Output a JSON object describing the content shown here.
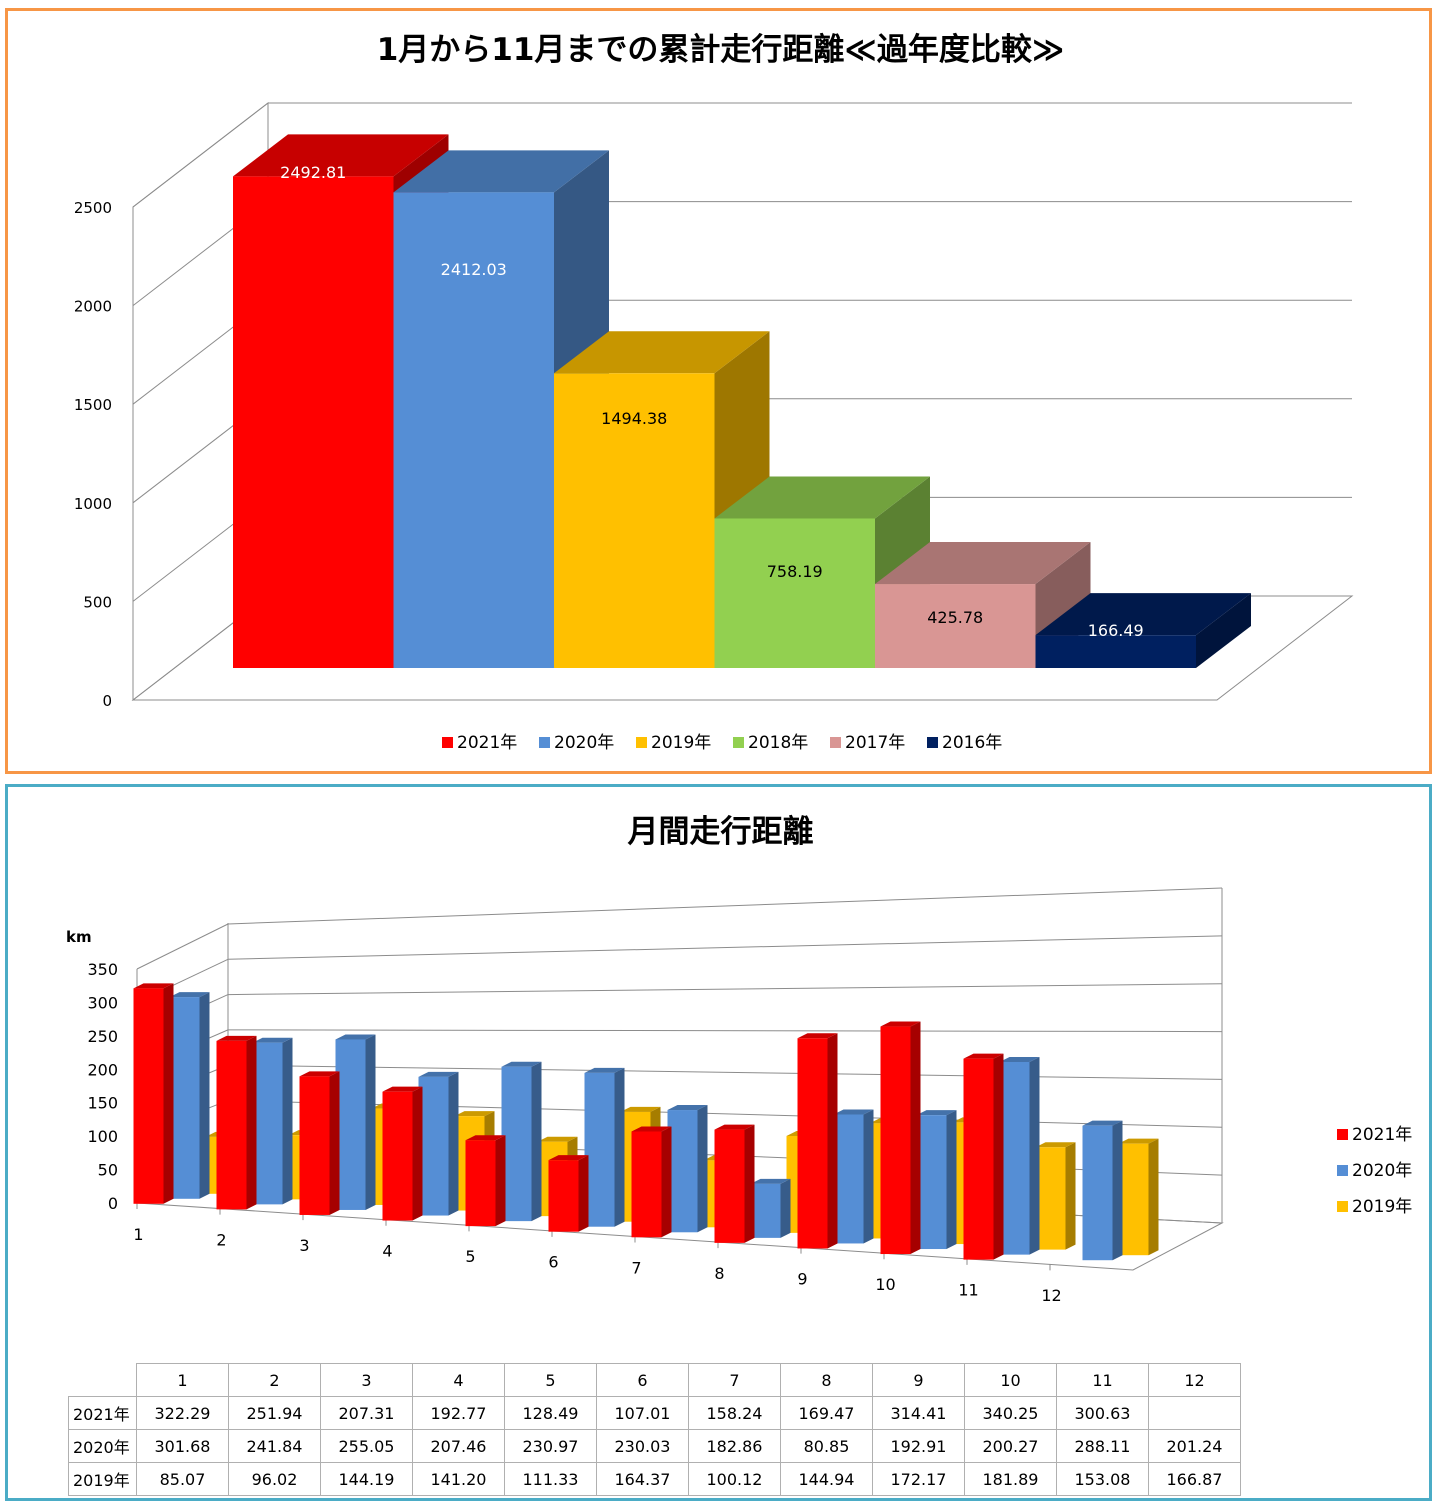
{
  "chart_data": [
    {
      "type": "bar",
      "title": "1月から11月までの累計走行距離≪過年度比較≫",
      "categories": [
        "2021年",
        "2020年",
        "2019年",
        "2018年",
        "2017年",
        "2016年"
      ],
      "values": [
        2492.81,
        2412.03,
        1494.38,
        758.19,
        425.78,
        166.49
      ],
      "colors": [
        "#ff0000",
        "#558ed5",
        "#ffc000",
        "#92d050",
        "#d99694",
        "#002060"
      ],
      "ylim": [
        0,
        2500
      ],
      "yticks": [
        "0",
        "500",
        "1000",
        "1500",
        "2000",
        "2500"
      ],
      "legend": "bottom",
      "grid": true,
      "style": "3d"
    },
    {
      "type": "bar",
      "title": "月間走行距離",
      "ylabel": "km",
      "categories": [
        "1",
        "2",
        "3",
        "4",
        "5",
        "6",
        "7",
        "8",
        "9",
        "10",
        "11",
        "12"
      ],
      "series": [
        {
          "name": "2021年",
          "color": "#ff0000",
          "values": [
            322.29,
            251.94,
            207.31,
            192.77,
            128.49,
            107.01,
            158.24,
            169.47,
            314.41,
            340.25,
            300.63,
            null
          ]
        },
        {
          "name": "2020年",
          "color": "#558ed5",
          "values": [
            301.68,
            241.84,
            255.05,
            207.46,
            230.97,
            230.03,
            182.86,
            80.85,
            192.91,
            200.27,
            288.11,
            201.24
          ]
        },
        {
          "name": "2019年",
          "color": "#ffc000",
          "values": [
            85.07,
            96.02,
            144.19,
            141.2,
            111.33,
            164.37,
            100.12,
            144.94,
            172.17,
            181.89,
            153.08,
            166.87
          ]
        }
      ],
      "ylim": [
        0,
        350
      ],
      "yticks": [
        "0",
        "50",
        "100",
        "150",
        "200",
        "250",
        "300",
        "350"
      ],
      "legend": "right",
      "grid": true,
      "style": "3d"
    }
  ],
  "table": {
    "columns": [
      "1",
      "2",
      "3",
      "4",
      "5",
      "6",
      "7",
      "8",
      "9",
      "10",
      "11",
      "12"
    ],
    "rows": [
      {
        "label": "2021年",
        "cells": [
          "322.29",
          "251.94",
          "207.31",
          "192.77",
          "128.49",
          "107.01",
          "158.24",
          "169.47",
          "314.41",
          "340.25",
          "300.63",
          ""
        ]
      },
      {
        "label": "2020年",
        "cells": [
          "301.68",
          "241.84",
          "255.05",
          "207.46",
          "230.97",
          "230.03",
          "182.86",
          "80.85",
          "192.91",
          "200.27",
          "288.11",
          "201.24"
        ]
      },
      {
        "label": "2019年",
        "cells": [
          "85.07",
          "96.02",
          "144.19",
          "141.20",
          "111.33",
          "164.37",
          "100.12",
          "144.94",
          "172.17",
          "181.89",
          "153.08",
          "166.87"
        ]
      }
    ]
  }
}
